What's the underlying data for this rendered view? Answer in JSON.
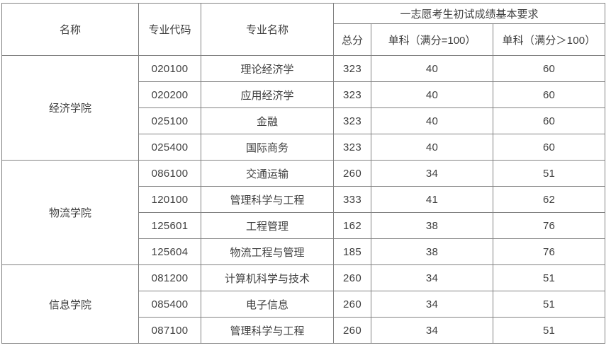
{
  "table": {
    "headers": {
      "col_name": "名称",
      "col_code": "专业代码",
      "col_major": "专业名称",
      "group_requirements": "一志愿考生初试成绩基本要求",
      "col_total": "总分",
      "col_single_100": "单科（满分=100）",
      "col_single_gt100": "单科（满分＞100）"
    },
    "groups": [
      {
        "name": "经济学院",
        "rows": [
          {
            "code": "020100",
            "major": "理论经济学",
            "total": "323",
            "single100": "40",
            "singleGt100": "60"
          },
          {
            "code": "020200",
            "major": "应用经济学",
            "total": "323",
            "single100": "40",
            "singleGt100": "60"
          },
          {
            "code": "025100",
            "major": "金融",
            "total": "323",
            "single100": "40",
            "singleGt100": "60"
          },
          {
            "code": "025400",
            "major": "国际商务",
            "total": "323",
            "single100": "40",
            "singleGt100": "60"
          }
        ]
      },
      {
        "name": "物流学院",
        "rows": [
          {
            "code": "086100",
            "major": "交通运输",
            "total": "260",
            "single100": "34",
            "singleGt100": "51"
          },
          {
            "code": "120100",
            "major": "管理科学与工程",
            "total": "333",
            "single100": "41",
            "singleGt100": "62"
          },
          {
            "code": "125601",
            "major": "工程管理",
            "total": "162",
            "single100": "38",
            "singleGt100": "76"
          },
          {
            "code": "125604",
            "major": "物流工程与管理",
            "total": "185",
            "single100": "38",
            "singleGt100": "76"
          }
        ]
      },
      {
        "name": "信息学院",
        "rows": [
          {
            "code": "081200",
            "major": "计算机科学与技术",
            "total": "260",
            "single100": "34",
            "singleGt100": "51"
          },
          {
            "code": "085400",
            "major": "电子信息",
            "total": "260",
            "single100": "34",
            "singleGt100": "51"
          },
          {
            "code": "087100",
            "major": "管理科学与工程",
            "total": "260",
            "single100": "34",
            "singleGt100": "51"
          }
        ]
      }
    ],
    "colors": {
      "border": "#828282",
      "text": "#3e3e3e",
      "background": "#ffffff"
    }
  }
}
